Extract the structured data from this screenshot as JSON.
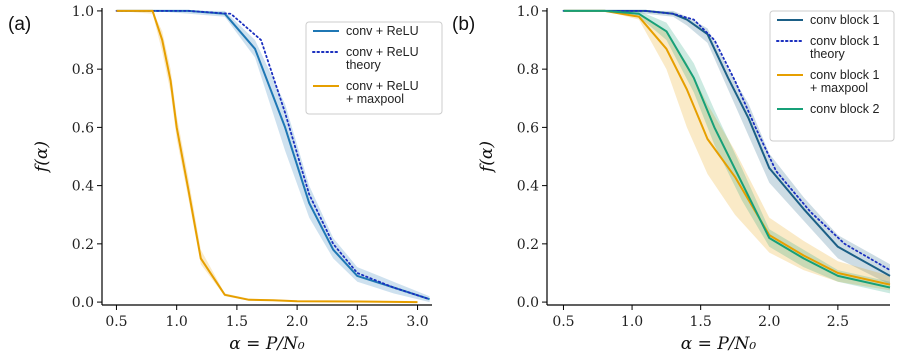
{
  "colors": {
    "blue": "#1f77b4",
    "navy": "#1a2fbf",
    "orange": "#e69f00",
    "green": "#17a078",
    "dark_teal": "#1b5f86"
  },
  "chart_data": [
    {
      "type": "line",
      "panel": "(a)",
      "xlabel": "α = P/N₀",
      "ylabel": "f(α)",
      "xlim": [
        0.38,
        3.12
      ],
      "ylim": [
        -0.01,
        1.01
      ],
      "xticks": [
        "0.5",
        "1.0",
        "1.5",
        "2.0",
        "2.5",
        "3.0"
      ],
      "xtick_values": [
        0.5,
        1.0,
        1.5,
        2.0,
        2.5,
        3.0
      ],
      "yticks": [
        "0.0",
        "0.2",
        "0.4",
        "0.6",
        "0.8",
        "1.0"
      ],
      "ytick_values": [
        0,
        0.2,
        0.4,
        0.6,
        0.8,
        1.0
      ],
      "grid": false,
      "legend_position": "top-right",
      "series": [
        {
          "name": "conv + ReLU",
          "style": "solid",
          "color": "#1f77b4",
          "x": [
            0.5,
            0.8,
            1.1,
            1.4,
            1.65,
            1.9,
            2.1,
            2.3,
            2.5,
            2.8,
            3.1
          ],
          "y": [
            1.0,
            1.0,
            1.0,
            0.99,
            0.87,
            0.6,
            0.34,
            0.18,
            0.09,
            0.05,
            0.01
          ],
          "band": {
            "lower": [
              1.0,
              1.0,
              0.99,
              0.98,
              0.84,
              0.52,
              0.29,
              0.15,
              0.07,
              0.03,
              0.0
            ],
            "upper": [
              1.0,
              1.0,
              1.0,
              1.0,
              0.9,
              0.68,
              0.4,
              0.22,
              0.12,
              0.07,
              0.02
            ]
          }
        },
        {
          "name": "conv + ReLU theory",
          "style": "dotted",
          "color": "#1a2fbf",
          "x": [
            0.5,
            0.8,
            1.1,
            1.45,
            1.7,
            1.9,
            2.1,
            2.3,
            2.5,
            2.8,
            3.1
          ],
          "y": [
            1.0,
            1.0,
            1.0,
            0.99,
            0.9,
            0.65,
            0.37,
            0.2,
            0.1,
            0.05,
            0.01
          ]
        },
        {
          "name": "conv + ReLU + maxpool",
          "style": "solid",
          "color": "#e69f00",
          "x": [
            0.5,
            0.8,
            0.88,
            0.95,
            1.0,
            1.1,
            1.2,
            1.4,
            1.6,
            1.8,
            2.0,
            2.5,
            3.0
          ],
          "y": [
            1.0,
            1.0,
            0.9,
            0.76,
            0.6,
            0.38,
            0.15,
            0.025,
            0.008,
            0.006,
            0.003,
            0.002,
            0.0
          ],
          "band": {
            "lower": [
              1.0,
              0.99,
              0.86,
              0.72,
              0.56,
              0.35,
              0.13,
              0.02,
              0.005,
              0.004,
              0.002,
              0.001,
              0.0
            ],
            "upper": [
              1.0,
              1.0,
              0.93,
              0.8,
              0.64,
              0.42,
              0.18,
              0.03,
              0.012,
              0.009,
              0.005,
              0.003,
              0.001
            ]
          }
        }
      ]
    },
    {
      "type": "line",
      "panel": "(b)",
      "xlabel": "α = P/N₀",
      "ylabel": "f(α)",
      "xlim": [
        0.38,
        2.88
      ],
      "ylim": [
        -0.01,
        1.01
      ],
      "xticks": [
        "0.5",
        "1.0",
        "1.5",
        "2.0",
        "2.5"
      ],
      "xtick_values": [
        0.5,
        1.0,
        1.5,
        2.0,
        2.5
      ],
      "yticks": [
        "0.0",
        "0.2",
        "0.4",
        "0.6",
        "0.8",
        "1.0"
      ],
      "ytick_values": [
        0,
        0.2,
        0.4,
        0.6,
        0.8,
        1.0
      ],
      "grid": false,
      "legend_position": "top-right",
      "series": [
        {
          "name": "conv block 1",
          "style": "solid",
          "color": "#1b5f86",
          "x": [
            0.5,
            0.8,
            1.1,
            1.3,
            1.4,
            1.55,
            1.7,
            1.85,
            2.0,
            2.25,
            2.5,
            2.88
          ],
          "y": [
            1.0,
            1.0,
            1.0,
            0.99,
            0.97,
            0.92,
            0.77,
            0.63,
            0.46,
            0.32,
            0.19,
            0.09
          ],
          "band": {
            "lower": [
              1.0,
              1.0,
              0.99,
              0.98,
              0.95,
              0.89,
              0.73,
              0.57,
              0.41,
              0.28,
              0.15,
              0.06
            ],
            "upper": [
              1.0,
              1.0,
              1.0,
              1.0,
              0.98,
              0.94,
              0.8,
              0.68,
              0.51,
              0.36,
              0.23,
              0.13
            ]
          }
        },
        {
          "name": "conv block 1 theory",
          "style": "dotted",
          "color": "#1a2fbf",
          "x": [
            0.5,
            0.8,
            1.1,
            1.3,
            1.45,
            1.6,
            1.75,
            1.9,
            2.05,
            2.3,
            2.55,
            2.88
          ],
          "y": [
            1.0,
            1.0,
            1.0,
            0.99,
            0.97,
            0.9,
            0.76,
            0.6,
            0.45,
            0.31,
            0.2,
            0.11
          ]
        },
        {
          "name": "conv block 1 + maxpool",
          "style": "solid",
          "color": "#e69f00",
          "x": [
            0.5,
            0.8,
            1.05,
            1.25,
            1.4,
            1.55,
            1.75,
            2.0,
            2.25,
            2.5,
            2.88
          ],
          "y": [
            1.0,
            1.0,
            0.98,
            0.87,
            0.73,
            0.56,
            0.43,
            0.23,
            0.16,
            0.1,
            0.06
          ],
          "band": {
            "lower": [
              1.0,
              1.0,
              0.97,
              0.8,
              0.6,
              0.44,
              0.3,
              0.17,
              0.11,
              0.07,
              0.04
            ],
            "upper": [
              1.0,
              1.0,
              0.99,
              0.93,
              0.82,
              0.68,
              0.52,
              0.29,
              0.21,
              0.14,
              0.09
            ]
          }
        },
        {
          "name": "conv block 2",
          "style": "solid",
          "color": "#17a078",
          "x": [
            0.5,
            0.8,
            1.05,
            1.25,
            1.45,
            1.6,
            1.8,
            2.0,
            2.25,
            2.5,
            2.88
          ],
          "y": [
            1.0,
            1.0,
            0.99,
            0.93,
            0.77,
            0.6,
            0.41,
            0.22,
            0.15,
            0.09,
            0.05
          ],
          "band": {
            "lower": [
              1.0,
              1.0,
              0.98,
              0.9,
              0.72,
              0.54,
              0.35,
              0.19,
              0.12,
              0.07,
              0.03
            ],
            "upper": [
              1.0,
              1.0,
              1.0,
              0.96,
              0.82,
              0.66,
              0.46,
              0.25,
              0.18,
              0.11,
              0.07
            ]
          }
        }
      ]
    }
  ],
  "legend_lines": [
    [
      [
        "conv + ReLU"
      ],
      [
        "conv + ReLU",
        "theory"
      ],
      [
        "conv + ReLU",
        "+ maxpool"
      ]
    ],
    [
      [
        "conv block 1"
      ],
      [
        "conv block 1",
        "theory"
      ],
      [
        "conv block 1",
        "+ maxpool"
      ],
      [
        "conv block 2"
      ]
    ]
  ]
}
